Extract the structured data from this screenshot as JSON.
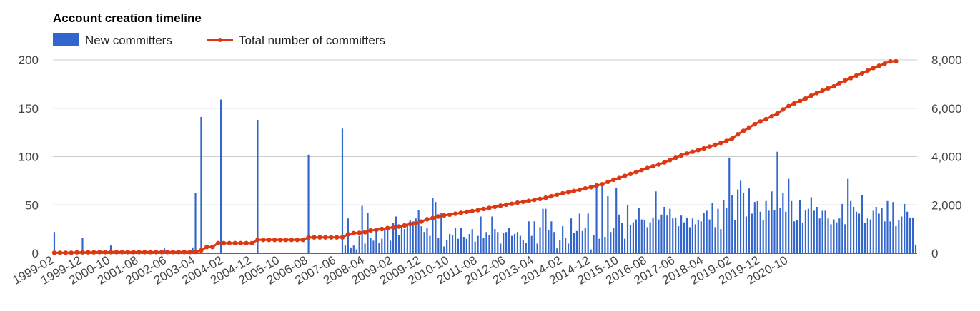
{
  "colors": {
    "bars": "#3366cc",
    "line": "#dc3912",
    "grid": "#cccccc",
    "axis": "#333333"
  },
  "chart_data": {
    "type": "bar",
    "title": "Account creation timeline",
    "legend": {
      "placement": "top-left",
      "entries": [
        "New committers",
        "Total number of committers"
      ]
    },
    "x_tick_labels": [
      "1999-02",
      "1999-12",
      "2000-10",
      "2001-08",
      "2002-06",
      "2003-04",
      "2004-02",
      "2004-12",
      "2005-10",
      "2006-08",
      "2007-06",
      "2008-04",
      "2009-02",
      "2009-12",
      "2010-10",
      "2011-08",
      "2012-06",
      "2013-04",
      "2014-02",
      "2014-12",
      "2015-10",
      "2016-08",
      "2017-06",
      "2018-04",
      "2019-02",
      "2019-12",
      "2020-10"
    ],
    "y_left": {
      "ticks": [
        0,
        50,
        100,
        150,
        200
      ],
      "ylim": [
        0,
        200
      ]
    },
    "y_right": {
      "ticks": [
        "0",
        "2,000",
        "4,000",
        "6,000",
        "8,000"
      ],
      "ylim": [
        0,
        8000
      ]
    },
    "grid": true,
    "series": [
      {
        "name": "New committers",
        "type": "bar",
        "axis": "left",
        "values": [
          22,
          0,
          0,
          0,
          0,
          0,
          0,
          0,
          0,
          0,
          16,
          0,
          0,
          0,
          0,
          0,
          0,
          0,
          0,
          0,
          8,
          0,
          0,
          0,
          0,
          0,
          0,
          0,
          0,
          0,
          0,
          0,
          0,
          0,
          0,
          0,
          0,
          0,
          0,
          5,
          0,
          0,
          0,
          0,
          0,
          0,
          0,
          0,
          0,
          6,
          62,
          0,
          141,
          0,
          0,
          0,
          0,
          0,
          0,
          159,
          0,
          0,
          0,
          0,
          0,
          0,
          0,
          0,
          0,
          0,
          0,
          0,
          138,
          0,
          0,
          0,
          0,
          0,
          0,
          0,
          0,
          0,
          0,
          0,
          0,
          0,
          0,
          0,
          0,
          0,
          102,
          0,
          0,
          0,
          0,
          0,
          0,
          0,
          0,
          0,
          0,
          0,
          129,
          8,
          36,
          6,
          8,
          4,
          18,
          49,
          10,
          42,
          16,
          13,
          23,
          11,
          15,
          24,
          25,
          13,
          31,
          38,
          19,
          28,
          25,
          29,
          34,
          33,
          36,
          45,
          28,
          22,
          26,
          18,
          57,
          53,
          16,
          42,
          7,
          14,
          20,
          19,
          26,
          15,
          26,
          17,
          15,
          20,
          25,
          12,
          18,
          38,
          16,
          22,
          19,
          38,
          25,
          22,
          10,
          21,
          22,
          26,
          18,
          20,
          22,
          18,
          14,
          11,
          33,
          18,
          33,
          10,
          27,
          46,
          46,
          24,
          33,
          22,
          5,
          14,
          28,
          16,
          10,
          36,
          21,
          23,
          41,
          23,
          26,
          41,
          4,
          19,
          73,
          15,
          71,
          17,
          59,
          22,
          26,
          68,
          40,
          31,
          15,
          50,
          29,
          32,
          35,
          47,
          35,
          34,
          27,
          32,
          37,
          64,
          35,
          40,
          48,
          39,
          46,
          36,
          37,
          28,
          39,
          32,
          37,
          27,
          36,
          30,
          34,
          33,
          42,
          44,
          35,
          52,
          27,
          46,
          25,
          55,
          47,
          99,
          60,
          34,
          66,
          75,
          62,
          38,
          67,
          41,
          53,
          54,
          43,
          34,
          54,
          44,
          64,
          45,
          105,
          47,
          62,
          43,
          77,
          54,
          33,
          34,
          55,
          31,
          45,
          46,
          58,
          44,
          48,
          36,
          44,
          44,
          36,
          30,
          35,
          32,
          36,
          51,
          30,
          77,
          54,
          48,
          43,
          41,
          60,
          31,
          36,
          35,
          44,
          48,
          41,
          47,
          33,
          54,
          33,
          53,
          28,
          34,
          38,
          51,
          43,
          37,
          37,
          9
        ]
      },
      {
        "name": "Total number of committers",
        "type": "line",
        "axis": "right",
        "sample_step_months": 2,
        "values": [
          22,
          22,
          22,
          22,
          38,
          38,
          38,
          38,
          46,
          46,
          46,
          46,
          46,
          46,
          46,
          46,
          46,
          46,
          46,
          46,
          51,
          51,
          51,
          51,
          51,
          56,
          118,
          259,
          259,
          418,
          418,
          418,
          418,
          418,
          418,
          418,
          556,
          556,
          556,
          556,
          556,
          556,
          556,
          556,
          556,
          658,
          658,
          658,
          658,
          658,
          658,
          658,
          787,
          831,
          843,
          870,
          944,
          967,
          1004,
          1042,
          1068,
          1105,
          1152,
          1209,
          1245,
          1312,
          1407,
          1458,
          1519,
          1569,
          1597,
          1635,
          1674,
          1712,
          1747,
          1786,
          1834,
          1877,
          1922,
          1969,
          2009,
          2046,
          2092,
          2128,
          2167,
          2211,
          2249,
          2298,
          2358,
          2427,
          2484,
          2531,
          2577,
          2630,
          2684,
          2737,
          2800,
          2859,
          2954,
          3040,
          3111,
          3199,
          3284,
          3362,
          3448,
          3525,
          3600,
          3675,
          3762,
          3854,
          3951,
          4048,
          4124,
          4201,
          4270,
          4339,
          4410,
          4487,
          4570,
          4650,
          4747,
          4925,
          5062,
          5202,
          5339,
          5453,
          5551,
          5662,
          5781,
          5948,
          6087,
          6203,
          6292,
          6403,
          6522,
          6631,
          6729,
          6826,
          6904,
          7037,
          7148,
          7248,
          7354,
          7446,
          7557,
          7666,
          7756,
          7847,
          7937,
          7941
        ]
      }
    ]
  }
}
